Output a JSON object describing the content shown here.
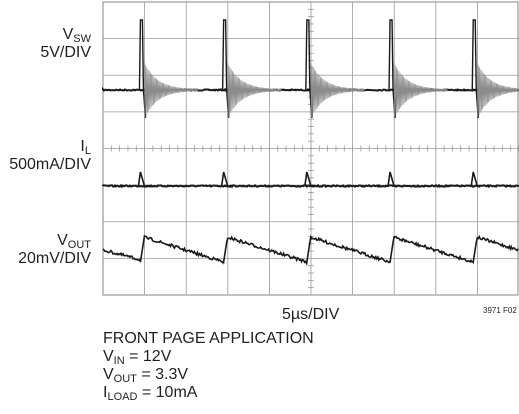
{
  "chart_data": {
    "type": "line",
    "title": "",
    "traces": [
      {
        "symbol": "V",
        "subscript": "SW",
        "scale": "5V/DIV"
      },
      {
        "symbol": "I",
        "subscript": "L",
        "scale": "500mA/DIV"
      },
      {
        "symbol": "V",
        "subscript": "OUT",
        "scale": "20mV/DIV"
      }
    ],
    "x_scale": "5µs/DIV",
    "grid": {
      "x_divisions": 10,
      "y_divisions": 8,
      "visible": true
    },
    "figure_id": "3971 F02",
    "switching_period_div": 2,
    "first_pulse_div": 0.9
  },
  "conditions": {
    "title": "FRONT PAGE APPLICATION",
    "vin": {
      "symbol": "V",
      "subscript": "IN",
      "value": " = 12V"
    },
    "vout": {
      "symbol": "V",
      "subscript": "OUT",
      "value": " = 3.3V"
    },
    "iload": {
      "symbol": "I",
      "subscript": "LOAD",
      "value": " = 10mA"
    }
  },
  "colors": {
    "grid": "#9a9a9a",
    "trace": "#1a1a1a",
    "ring": "#8c8c8c",
    "text": "#231f20"
  }
}
